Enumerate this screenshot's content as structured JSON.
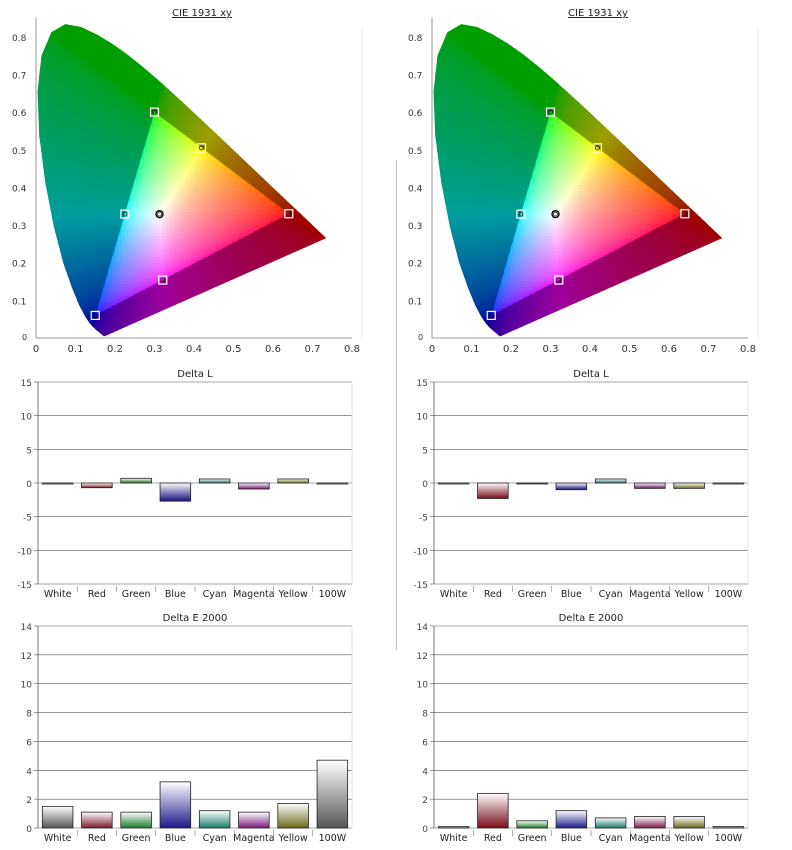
{
  "chart_data": [
    {
      "type": "scatter",
      "title": "CIE 1931 xy",
      "xlim": [
        0,
        0.8
      ],
      "ylim": [
        0,
        0.85
      ],
      "xticks": [
        "0",
        "0.1",
        "0.2",
        "0.3",
        "0.4",
        "0.5",
        "0.6",
        "0.7",
        "0.8"
      ],
      "yticks": [
        "0.1",
        "0.2",
        "0.3",
        "0.4",
        "0.5",
        "0.6",
        "0.7",
        "0.8"
      ],
      "targets": [
        [
          0.64,
          0.33
        ],
        [
          0.3,
          0.6
        ],
        [
          0.15,
          0.06
        ],
        [
          0.3127,
          0.329
        ],
        [
          0.225,
          0.329
        ],
        [
          0.321,
          0.154
        ],
        [
          0.419,
          0.505
        ]
      ],
      "measured": [
        [
          0.64,
          0.33
        ],
        [
          0.3,
          0.6
        ],
        [
          0.15,
          0.06
        ],
        [
          0.3127,
          0.329
        ],
        [
          0.225,
          0.329
        ],
        [
          0.321,
          0.154
        ],
        [
          0.419,
          0.505
        ]
      ],
      "measured_white": [
        0.3127,
        0.329
      ]
    },
    {
      "type": "scatter",
      "title": "CIE 1931 xy",
      "xlim": [
        0,
        0.8
      ],
      "ylim": [
        0,
        0.85
      ],
      "xticks": [
        "0",
        "0.1",
        "0.2",
        "0.3",
        "0.4",
        "0.5",
        "0.6",
        "0.7",
        "0.8"
      ],
      "yticks": [
        "0.1",
        "0.2",
        "0.3",
        "0.4",
        "0.5",
        "0.6",
        "0.7",
        "0.8"
      ],
      "targets": [
        [
          0.64,
          0.33
        ],
        [
          0.3,
          0.6
        ],
        [
          0.15,
          0.06
        ],
        [
          0.3127,
          0.329
        ],
        [
          0.225,
          0.329
        ],
        [
          0.321,
          0.154
        ],
        [
          0.419,
          0.505
        ]
      ],
      "measured": [
        [
          0.64,
          0.33
        ],
        [
          0.3,
          0.6
        ],
        [
          0.15,
          0.06
        ],
        [
          0.3127,
          0.329
        ],
        [
          0.225,
          0.329
        ],
        [
          0.321,
          0.154
        ],
        [
          0.419,
          0.505
        ]
      ],
      "measured_white": [
        0.3127,
        0.329
      ]
    },
    {
      "type": "bar",
      "title": "Delta L",
      "categories": [
        "White",
        "Red",
        "Green",
        "Blue",
        "Cyan",
        "Magenta",
        "Yellow",
        "100W"
      ],
      "values": [
        0,
        -0.7,
        0.7,
        -2.7,
        0.6,
        -0.9,
        0.6,
        0
      ],
      "ylim": [
        -15,
        15
      ],
      "yticks": [
        "15",
        "10",
        "5",
        "0",
        "-5",
        "-10",
        "-15"
      ],
      "colors": [
        "#bbbbbb",
        "#8a1a2a",
        "#2a6a2a",
        "#16127a",
        "#2a6a6a",
        "#6a1a6a",
        "#6a6a1a",
        "#bbbbbb"
      ]
    },
    {
      "type": "bar",
      "title": "Delta L",
      "categories": [
        "White",
        "Red",
        "Green",
        "Blue",
        "Cyan",
        "Magenta",
        "Yellow",
        "100W"
      ],
      "values": [
        0,
        -2.3,
        0,
        -1,
        0.6,
        -0.8,
        -0.8,
        0
      ],
      "ylim": [
        -15,
        15
      ],
      "yticks": [
        "15",
        "10",
        "5",
        "0",
        "-5",
        "-10",
        "-15"
      ],
      "colors": [
        "#bbbbbb",
        "#7a0a18",
        "#2a6a2a",
        "#16127a",
        "#2a6a6a",
        "#6a1a6a",
        "#6a6a1a",
        "#bbbbbb"
      ]
    },
    {
      "type": "bar",
      "title": "Delta E 2000",
      "categories": [
        "White",
        "Red",
        "Green",
        "Blue",
        "Cyan",
        "Magenta",
        "Yellow",
        "100W"
      ],
      "values": [
        1.5,
        1.1,
        1.1,
        3.2,
        1.2,
        1.1,
        1.7,
        4.7
      ],
      "ylim": [
        0,
        14
      ],
      "yticks": [
        "14",
        "12",
        "10",
        "8",
        "6",
        "4",
        "2",
        "0"
      ],
      "colors": [
        "#555555",
        "#7a1a30",
        "#1a7a2a",
        "#1e1a8a",
        "#1a7a6a",
        "#7a1a7a",
        "#6a6a1a",
        "#555555"
      ]
    },
    {
      "type": "bar",
      "title": "Delta E 2000",
      "categories": [
        "White",
        "Red",
        "Green",
        "Blue",
        "Cyan",
        "Magenta",
        "Yellow",
        "100W"
      ],
      "values": [
        0.1,
        2.4,
        0.5,
        1.2,
        0.7,
        0.8,
        0.8,
        0.1
      ],
      "ylim": [
        0,
        14
      ],
      "yticks": [
        "14",
        "12",
        "10",
        "8",
        "6",
        "4",
        "2",
        "0"
      ],
      "colors": [
        "#555555",
        "#7a0a18",
        "#1a7a2a",
        "#1e1a8a",
        "#1a7a6a",
        "#7a1a4a",
        "#6a6a1a",
        "#555555"
      ]
    }
  ]
}
